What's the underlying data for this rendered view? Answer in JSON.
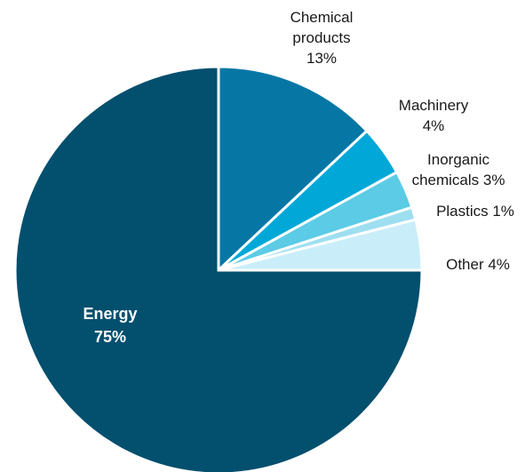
{
  "chart_data": {
    "type": "pie",
    "title": "",
    "slices": [
      {
        "label": [
          "Chemical",
          "products",
          "13%"
        ],
        "value": 13,
        "color": "#0677a5"
      },
      {
        "label": [
          "Machinery",
          "4%"
        ],
        "value": 4,
        "color": "#01a8d7"
      },
      {
        "label": [
          "Inorganic",
          "chemicals 3%"
        ],
        "value": 3,
        "color": "#5ccbe5"
      },
      {
        "label": [
          "Plastics 1%"
        ],
        "value": 1,
        "color": "#9ddff0"
      },
      {
        "label": [
          "Other 4%"
        ],
        "value": 4,
        "color": "#c9eef9"
      },
      {
        "label": [
          "Energy",
          "75%"
        ],
        "value": 75,
        "color": "#034f6e",
        "label_inside": true
      }
    ]
  }
}
